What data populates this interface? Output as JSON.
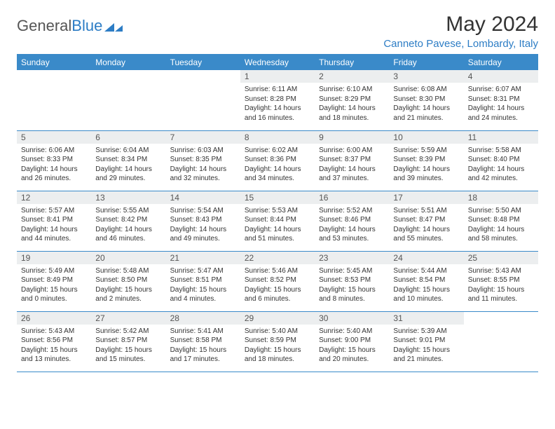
{
  "brand": {
    "part1": "General",
    "part2": "Blue"
  },
  "title": "May 2024",
  "location": "Canneto Pavese, Lombardy, Italy",
  "colors": {
    "header_bg": "#3a8ac9",
    "accent": "#2d7dc5",
    "daynum_bg": "#eceeef",
    "text": "#333333",
    "background": "#ffffff"
  },
  "weekdays": [
    "Sunday",
    "Monday",
    "Tuesday",
    "Wednesday",
    "Thursday",
    "Friday",
    "Saturday"
  ],
  "grid": [
    [
      null,
      null,
      null,
      {
        "n": "1",
        "sunrise": "6:11 AM",
        "sunset": "8:28 PM",
        "day_h": 14,
        "day_m": 16
      },
      {
        "n": "2",
        "sunrise": "6:10 AM",
        "sunset": "8:29 PM",
        "day_h": 14,
        "day_m": 18
      },
      {
        "n": "3",
        "sunrise": "6:08 AM",
        "sunset": "8:30 PM",
        "day_h": 14,
        "day_m": 21
      },
      {
        "n": "4",
        "sunrise": "6:07 AM",
        "sunset": "8:31 PM",
        "day_h": 14,
        "day_m": 24
      }
    ],
    [
      {
        "n": "5",
        "sunrise": "6:06 AM",
        "sunset": "8:33 PM",
        "day_h": 14,
        "day_m": 26
      },
      {
        "n": "6",
        "sunrise": "6:04 AM",
        "sunset": "8:34 PM",
        "day_h": 14,
        "day_m": 29
      },
      {
        "n": "7",
        "sunrise": "6:03 AM",
        "sunset": "8:35 PM",
        "day_h": 14,
        "day_m": 32
      },
      {
        "n": "8",
        "sunrise": "6:02 AM",
        "sunset": "8:36 PM",
        "day_h": 14,
        "day_m": 34
      },
      {
        "n": "9",
        "sunrise": "6:00 AM",
        "sunset": "8:37 PM",
        "day_h": 14,
        "day_m": 37
      },
      {
        "n": "10",
        "sunrise": "5:59 AM",
        "sunset": "8:39 PM",
        "day_h": 14,
        "day_m": 39
      },
      {
        "n": "11",
        "sunrise": "5:58 AM",
        "sunset": "8:40 PM",
        "day_h": 14,
        "day_m": 42
      }
    ],
    [
      {
        "n": "12",
        "sunrise": "5:57 AM",
        "sunset": "8:41 PM",
        "day_h": 14,
        "day_m": 44
      },
      {
        "n": "13",
        "sunrise": "5:55 AM",
        "sunset": "8:42 PM",
        "day_h": 14,
        "day_m": 46
      },
      {
        "n": "14",
        "sunrise": "5:54 AM",
        "sunset": "8:43 PM",
        "day_h": 14,
        "day_m": 49
      },
      {
        "n": "15",
        "sunrise": "5:53 AM",
        "sunset": "8:44 PM",
        "day_h": 14,
        "day_m": 51
      },
      {
        "n": "16",
        "sunrise": "5:52 AM",
        "sunset": "8:46 PM",
        "day_h": 14,
        "day_m": 53
      },
      {
        "n": "17",
        "sunrise": "5:51 AM",
        "sunset": "8:47 PM",
        "day_h": 14,
        "day_m": 55
      },
      {
        "n": "18",
        "sunrise": "5:50 AM",
        "sunset": "8:48 PM",
        "day_h": 14,
        "day_m": 58
      }
    ],
    [
      {
        "n": "19",
        "sunrise": "5:49 AM",
        "sunset": "8:49 PM",
        "day_h": 15,
        "day_m": 0
      },
      {
        "n": "20",
        "sunrise": "5:48 AM",
        "sunset": "8:50 PM",
        "day_h": 15,
        "day_m": 2
      },
      {
        "n": "21",
        "sunrise": "5:47 AM",
        "sunset": "8:51 PM",
        "day_h": 15,
        "day_m": 4
      },
      {
        "n": "22",
        "sunrise": "5:46 AM",
        "sunset": "8:52 PM",
        "day_h": 15,
        "day_m": 6
      },
      {
        "n": "23",
        "sunrise": "5:45 AM",
        "sunset": "8:53 PM",
        "day_h": 15,
        "day_m": 8
      },
      {
        "n": "24",
        "sunrise": "5:44 AM",
        "sunset": "8:54 PM",
        "day_h": 15,
        "day_m": 10
      },
      {
        "n": "25",
        "sunrise": "5:43 AM",
        "sunset": "8:55 PM",
        "day_h": 15,
        "day_m": 11
      }
    ],
    [
      {
        "n": "26",
        "sunrise": "5:43 AM",
        "sunset": "8:56 PM",
        "day_h": 15,
        "day_m": 13
      },
      {
        "n": "27",
        "sunrise": "5:42 AM",
        "sunset": "8:57 PM",
        "day_h": 15,
        "day_m": 15
      },
      {
        "n": "28",
        "sunrise": "5:41 AM",
        "sunset": "8:58 PM",
        "day_h": 15,
        "day_m": 17
      },
      {
        "n": "29",
        "sunrise": "5:40 AM",
        "sunset": "8:59 PM",
        "day_h": 15,
        "day_m": 18
      },
      {
        "n": "30",
        "sunrise": "5:40 AM",
        "sunset": "9:00 PM",
        "day_h": 15,
        "day_m": 20
      },
      {
        "n": "31",
        "sunrise": "5:39 AM",
        "sunset": "9:01 PM",
        "day_h": 15,
        "day_m": 21
      },
      null
    ]
  ],
  "labels": {
    "sunrise": "Sunrise:",
    "sunset": "Sunset:",
    "daylight_prefix": "Daylight:",
    "hours_word": "hours",
    "and_word": "and",
    "minutes_word": "minutes."
  }
}
